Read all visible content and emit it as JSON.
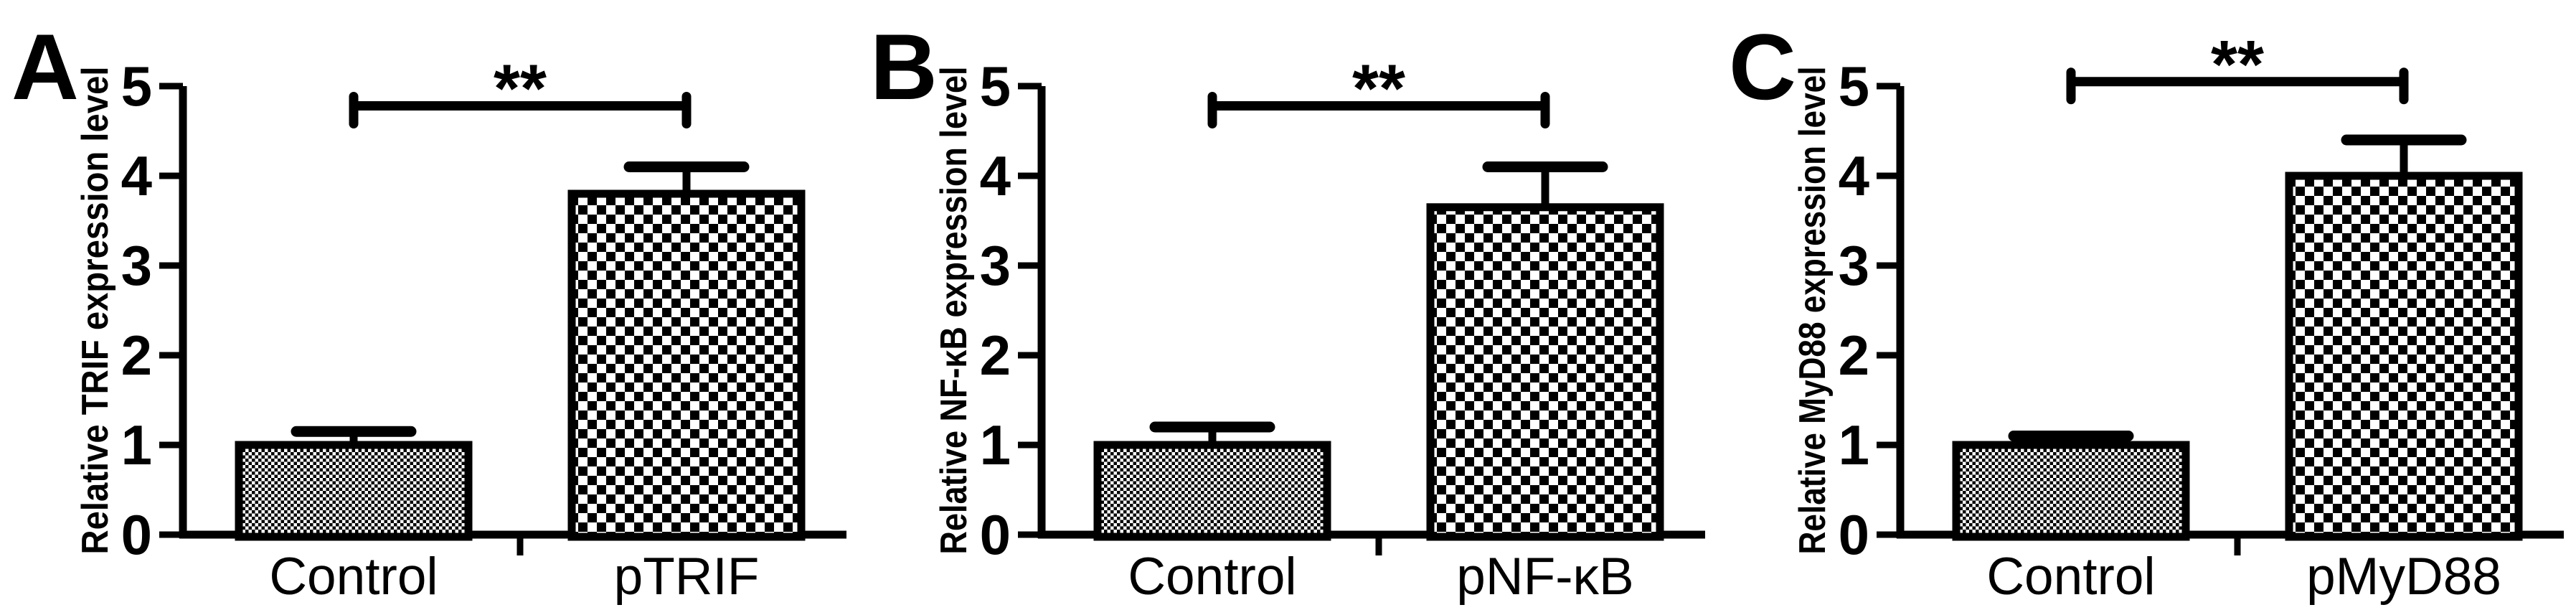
{
  "figure": {
    "background_color": "#ffffff",
    "ink_color": "#000000"
  },
  "chart_data": [
    {
      "type": "bar",
      "panel_label": "A",
      "categories": [
        "Control",
        "pTRIF"
      ],
      "values": [
        1.0,
        3.8
      ],
      "error_top": [
        1.15,
        4.1
      ],
      "ylabel": "Relative TRIF expression level",
      "xlabel": "",
      "ylim": [
        0,
        5
      ],
      "yticks": [
        "0",
        "1",
        "2",
        "3",
        "4",
        "5"
      ],
      "grid": "off",
      "legend": "none",
      "bar_patterns": [
        "fine-checker",
        "coarse-checker"
      ],
      "significance": {
        "label": "**",
        "between": [
          "Control",
          "pTRIF"
        ],
        "bracket_y": 4.78
      }
    },
    {
      "type": "bar",
      "panel_label": "B",
      "categories": [
        "Control",
        "pNF-κB"
      ],
      "values": [
        1.0,
        3.65
      ],
      "error_top": [
        1.2,
        4.1
      ],
      "ylabel": "Relative NF-κB expression level",
      "xlabel": "",
      "ylim": [
        0,
        5
      ],
      "yticks": [
        "0",
        "1",
        "2",
        "3",
        "4",
        "5"
      ],
      "grid": "off",
      "legend": "none",
      "bar_patterns": [
        "fine-checker",
        "coarse-checker"
      ],
      "significance": {
        "label": "**",
        "between": [
          "Control",
          "pNF-κB"
        ],
        "bracket_y": 4.78
      }
    },
    {
      "type": "bar",
      "panel_label": "C",
      "categories": [
        "Control",
        "pMyD88"
      ],
      "values": [
        1.0,
        4.0
      ],
      "error_top": [
        1.1,
        4.4
      ],
      "ylabel": "Relative MyD88 expression level",
      "xlabel": "",
      "ylim": [
        0,
        5
      ],
      "yticks": [
        "0",
        "1",
        "2",
        "3",
        "4",
        "5"
      ],
      "grid": "off",
      "legend": "none",
      "bar_patterns": [
        "fine-checker",
        "coarse-checker"
      ],
      "significance": {
        "label": "**",
        "between": [
          "Control",
          "pMyD88"
        ],
        "bracket_y": 5.05
      }
    }
  ]
}
